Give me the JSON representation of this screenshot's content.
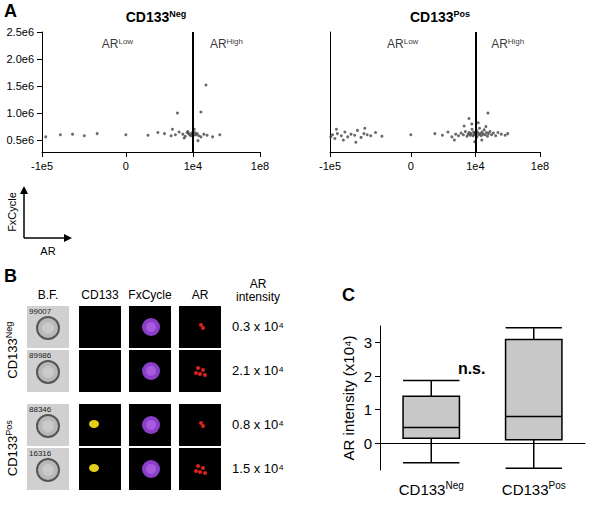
{
  "chart_data": [
    {
      "panel": "A",
      "type": "scatter",
      "title": "CD133Neg",
      "xlabel": "AR",
      "ylabel": "FxCycle",
      "log": "x",
      "marker": "circle",
      "color": "#444444",
      "gate": 10000,
      "regions": [
        "ARLow",
        "ARHigh"
      ],
      "xlim": [
        -100000,
        100000000
      ],
      "xticks": [
        {
          "value": -100000,
          "label": "-1e5"
        },
        0,
        {
          "value": 10000,
          "label": "1e4"
        },
        {
          "value": 100000000,
          "label": "1e8"
        }
      ],
      "ylim": [
        280000,
        2500000
      ],
      "yticks": [
        {
          "value": 500000,
          "label": "0.5e6"
        },
        {
          "value": 1000000,
          "label": "1.0e6"
        },
        {
          "value": 1500000,
          "label": "1.5e6"
        },
        {
          "value": 2000000,
          "label": "2.0e6"
        },
        {
          "value": 2500000,
          "label": "2.5e6"
        }
      ],
      "x": [
        -60000,
        -8000,
        -1500,
        -300,
        -50,
        0,
        20,
        80,
        200,
        500,
        900,
        1500,
        2500,
        3500,
        4500,
        5500,
        6500,
        7500,
        8500,
        9500,
        11000,
        13000,
        15000,
        18000,
        22000,
        30000,
        45000,
        70000,
        150000,
        400000,
        1200,
        30000,
        60000,
        20000,
        3000,
        600,
        12000,
        5000
      ],
      "values": [
        560000,
        600000,
        610000,
        580000,
        620000,
        600000,
        590000,
        640000,
        620000,
        580000,
        600000,
        650000,
        610000,
        570000,
        640000,
        620000,
        600000,
        580000,
        630000,
        610000,
        590000,
        640000,
        600000,
        620000,
        580000,
        560000,
        610000,
        590000,
        560000,
        600000,
        1000000,
        1020000,
        1520000,
        490000,
        540000,
        700000,
        700000,
        660000
      ]
    },
    {
      "type": "scatter",
      "title": "CD133Pos",
      "tick_labels": "x",
      "log": "x",
      "marker": "circle",
      "color": "#444444",
      "gate": 10000,
      "regions": [
        "ARLow",
        "ARHigh"
      ],
      "xlim": [
        -100000,
        100000000
      ],
      "xticks": [
        {
          "value": -100000,
          "label": "-1e5"
        },
        0,
        {
          "value": 10000,
          "label": "1e4"
        },
        {
          "value": 100000000,
          "label": "1e8"
        }
      ],
      "ylim": [
        280000,
        2500000
      ],
      "yticks": [
        {
          "value": 500000,
          "label": "0.5e6"
        },
        {
          "value": 1000000,
          "label": "1.0e6"
        },
        {
          "value": 1500000,
          "label": "1.5e6"
        },
        {
          "value": 2000000,
          "label": "2.0e6"
        },
        {
          "value": 2500000,
          "label": "2.5e6"
        }
      ],
      "x": [
        -90000,
        -70000,
        -50000,
        -35000,
        -20000,
        -12000,
        -8000,
        -5000,
        -3000,
        -2000,
        -1200,
        -800,
        -500,
        -300,
        -150,
        -60,
        0,
        30,
        90,
        200,
        350,
        600,
        900,
        1300,
        1800,
        2400,
        3000,
        3600,
        4200,
        4800,
        5500,
        6200,
        7000,
        7800,
        8600,
        9400,
        10500,
        11500,
        12500,
        14000,
        16000,
        18000,
        20000,
        23000,
        26000,
        30000,
        35000,
        40000,
        48000,
        56000,
        65000,
        80000,
        100000,
        130000,
        180000,
        250000,
        400000,
        700000,
        1000000,
        -40000,
        -15000,
        -700,
        2000,
        6000,
        15000,
        25000,
        9000,
        45000,
        4000,
        60000,
        500,
        -2500
      ],
      "values": [
        560000,
        600000,
        530000,
        620000,
        580000,
        650000,
        560000,
        610000,
        590000,
        680000,
        550000,
        620000,
        600000,
        580000,
        640000,
        570000,
        600000,
        620000,
        590000,
        650000,
        560000,
        610000,
        580000,
        630000,
        600000,
        660000,
        570000,
        610000,
        640000,
        590000,
        620000,
        700000,
        580000,
        650000,
        600000,
        630000,
        610000,
        680000,
        560000,
        640000,
        600000,
        720000,
        620000,
        580000,
        650000,
        610000,
        690000,
        600000,
        640000,
        570000,
        620000,
        660000,
        600000,
        630000,
        580000,
        640000,
        610000,
        590000,
        620000,
        700000,
        500000,
        720000,
        760000,
        800000,
        820000,
        500000,
        470000,
        750000,
        900000,
        1000000,
        500000,
        460000
      ]
    },
    {
      "panel": "C",
      "type": "boxplot",
      "ylabel": "AR intensity (x10⁴)",
      "color": "#c8c8c8",
      "categories": [
        "CD133Neg",
        "CD133Pos"
      ],
      "boxes": [
        {
          "min": -0.58,
          "q1": 0.15,
          "median": 0.47,
          "q3": 1.4,
          "max": 1.87
        },
        {
          "min": -0.75,
          "q1": 0.1,
          "median": 0.8,
          "q3": 3.1,
          "max": 3.45
        }
      ],
      "annotations": [
        "n.s."
      ],
      "ylim": [
        -0.8,
        3.5
      ],
      "yticks": [
        0,
        1,
        2,
        3
      ]
    }
  ],
  "panel_b": {
    "label": "B",
    "columns": [
      "B.F.",
      "CD133",
      "FxCycle",
      "AR",
      "AR intensity"
    ],
    "groups": [
      {
        "name": "CD133Neg",
        "cells": [
          {
            "id": "99007",
            "ar_intensity": "0.3 x 10⁴"
          },
          {
            "id": "89986",
            "ar_intensity": "2.1 x 10⁴"
          }
        ]
      },
      {
        "name": "CD133Pos",
        "cells": [
          {
            "id": "88346",
            "ar_intensity": "0.8 x 10⁴"
          },
          {
            "id": "16316",
            "ar_intensity": "1.5 x 10⁴"
          }
        ]
      }
    ]
  }
}
